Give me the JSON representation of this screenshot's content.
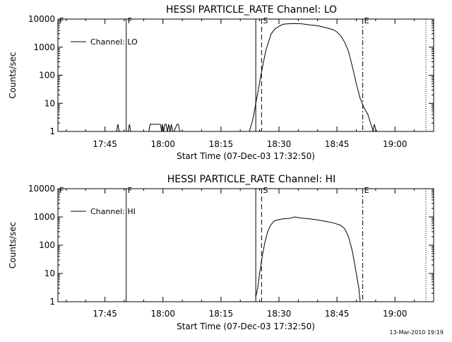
{
  "footer": {
    "timestamp": "13-Mar-2010 19:19"
  },
  "chart_data": [
    {
      "type": "line",
      "title": "HESSI PARTICLE_RATE Channel: LO",
      "xlabel": "Start Time (07-Dec-03 17:32:50)",
      "ylabel": "Counts/sec",
      "yscale": "log",
      "xlim": [
        "17:32:50",
        "19:10:00"
      ],
      "ylim": [
        1,
        10000
      ],
      "x_ticks": [
        "17:45",
        "18:00",
        "18:15",
        "18:30",
        "18:45",
        "19:00"
      ],
      "y_ticks": [
        "1",
        "10",
        "100",
        "1000",
        "10000"
      ],
      "legend": {
        "label": "Channel: LO",
        "position": "top-left"
      },
      "markers": [
        {
          "label": "F",
          "time": "17:32:50",
          "style": "solid"
        },
        {
          "label": "F",
          "time": "17:50:30",
          "style": "solid"
        },
        {
          "label": "",
          "time": "18:24:00",
          "style": "solid"
        },
        {
          "label": "S",
          "time": "18:25:30",
          "style": "dashed"
        },
        {
          "label": "E",
          "time": "18:51:40",
          "style": "dashdot"
        },
        {
          "label": "",
          "time": "19:08:00",
          "style": "dotted"
        }
      ],
      "series": [
        {
          "name": "Channel: LO",
          "x": [
            "17:48:00",
            "17:48:20",
            "17:48:40",
            "17:51:00",
            "17:51:20",
            "17:51:40",
            "17:56:20",
            "17:56:40",
            "17:59:20",
            "17:59:40",
            "17:59:50",
            "18:00:10",
            "18:00:30",
            "18:00:50",
            "18:01:10",
            "18:01:30",
            "18:01:50",
            "18:02:10",
            "18:02:30",
            "18:02:50",
            "18:03:40",
            "18:04:00",
            "18:04:20",
            "18:22:20",
            "18:23:00",
            "18:23:30",
            "18:24:00",
            "18:24:40",
            "18:25:20",
            "18:26:00",
            "18:26:40",
            "18:27:20",
            "18:28:00",
            "18:29:00",
            "18:30:00",
            "18:31:00",
            "18:32:00",
            "18:34:00",
            "18:36:00",
            "18:38:00",
            "18:40:00",
            "18:42:00",
            "18:44:00",
            "18:45:00",
            "18:46:00",
            "18:47:00",
            "18:48:00",
            "18:49:00",
            "18:50:00",
            "18:51:00",
            "18:52:00",
            "18:53:00",
            "18:53:40",
            "18:54:00",
            "18:54:20",
            "18:54:40",
            "18:55:00",
            "18:55:20"
          ],
          "y": [
            1,
            1.8,
            1,
            1,
            1.8,
            1,
            1,
            1.8,
            1.8,
            1,
            1.8,
            1,
            1.8,
            1.8,
            1,
            1.8,
            1,
            1.8,
            1,
            1,
            1.8,
            1.8,
            1,
            1,
            2,
            4,
            10,
            30,
            100,
            300,
            800,
            1600,
            3000,
            4500,
            5500,
            6500,
            6800,
            7000,
            6800,
            6200,
            5800,
            5000,
            4200,
            3500,
            2500,
            1500,
            700,
            200,
            50,
            15,
            7,
            4,
            2,
            1.5,
            1,
            1.8,
            1.2,
            1
          ]
        }
      ]
    },
    {
      "type": "line",
      "title": "HESSI PARTICLE_RATE Channel: HI",
      "xlabel": "Start Time (07-Dec-03 17:32:50)",
      "ylabel": "Counts/sec",
      "yscale": "log",
      "xlim": [
        "17:32:50",
        "19:10:00"
      ],
      "ylim": [
        1,
        10000
      ],
      "x_ticks": [
        "17:45",
        "18:00",
        "18:15",
        "18:30",
        "18:45",
        "19:00"
      ],
      "y_ticks": [
        "1",
        "10",
        "100",
        "1000",
        "10000"
      ],
      "legend": {
        "label": "Channel: HI",
        "position": "top-left"
      },
      "markers": [
        {
          "label": "F",
          "time": "17:32:50",
          "style": "solid"
        },
        {
          "label": "F",
          "time": "17:50:30",
          "style": "solid"
        },
        {
          "label": "",
          "time": "18:24:00",
          "style": "solid"
        },
        {
          "label": "S",
          "time": "18:25:30",
          "style": "dashed"
        },
        {
          "label": "E",
          "time": "18:51:40",
          "style": "dashdot"
        },
        {
          "label": "",
          "time": "19:08:00",
          "style": "dotted"
        }
      ],
      "series": [
        {
          "name": "Channel: HI",
          "x": [
            "18:24:00",
            "18:24:30",
            "18:25:00",
            "18:25:40",
            "18:26:20",
            "18:27:00",
            "18:27:40",
            "18:28:20",
            "18:29:00",
            "18:30:00",
            "18:31:00",
            "18:32:00",
            "18:33:00",
            "18:34:00",
            "18:35:00",
            "18:36:00",
            "18:38:00",
            "18:40:00",
            "18:42:00",
            "18:44:00",
            "18:46:00",
            "18:47:00",
            "18:48:00",
            "18:49:00",
            "18:50:00",
            "18:50:40",
            "18:51:00"
          ],
          "y": [
            1.5,
            3,
            10,
            40,
            120,
            280,
            470,
            620,
            750,
            800,
            850,
            870,
            900,
            1000,
            950,
            900,
            850,
            780,
            700,
            620,
            500,
            380,
            200,
            60,
            10,
            3,
            1
          ]
        }
      ]
    }
  ]
}
